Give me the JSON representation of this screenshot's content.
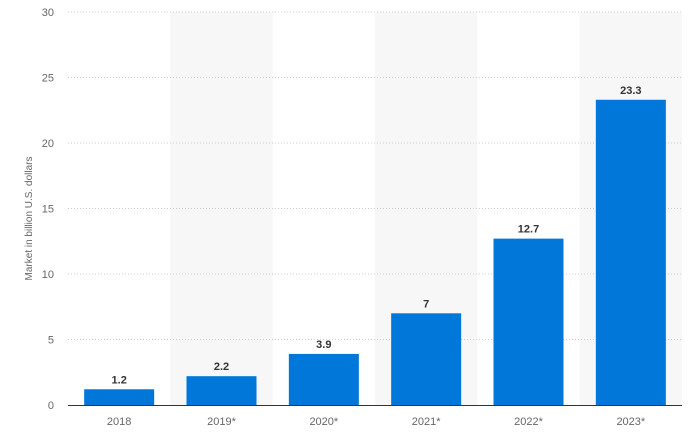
{
  "chart_data": {
    "type": "bar",
    "categories": [
      "2018",
      "2019*",
      "2020*",
      "2021*",
      "2022*",
      "2023*"
    ],
    "values": [
      1.2,
      2.2,
      3.9,
      7,
      12.7,
      23.3
    ],
    "data_labels": [
      "1.2",
      "2.2",
      "3.9",
      "7",
      "12.7",
      "23.3"
    ],
    "title": "",
    "xlabel": "",
    "ylabel": "Market in billion U.S. dollars",
    "ylim": [
      0,
      30
    ],
    "yticks": [
      0,
      5,
      10,
      15,
      20,
      25,
      30
    ],
    "grid": true,
    "grid_style": "dotted",
    "alternating_column_shading": true,
    "legend": "none",
    "colors": {
      "bar": "#0077d9",
      "grid": "#cccccc",
      "shade": "#f7f7f7",
      "axis": "#333333",
      "tick_text": "#666666",
      "label_text": "#333333"
    }
  }
}
